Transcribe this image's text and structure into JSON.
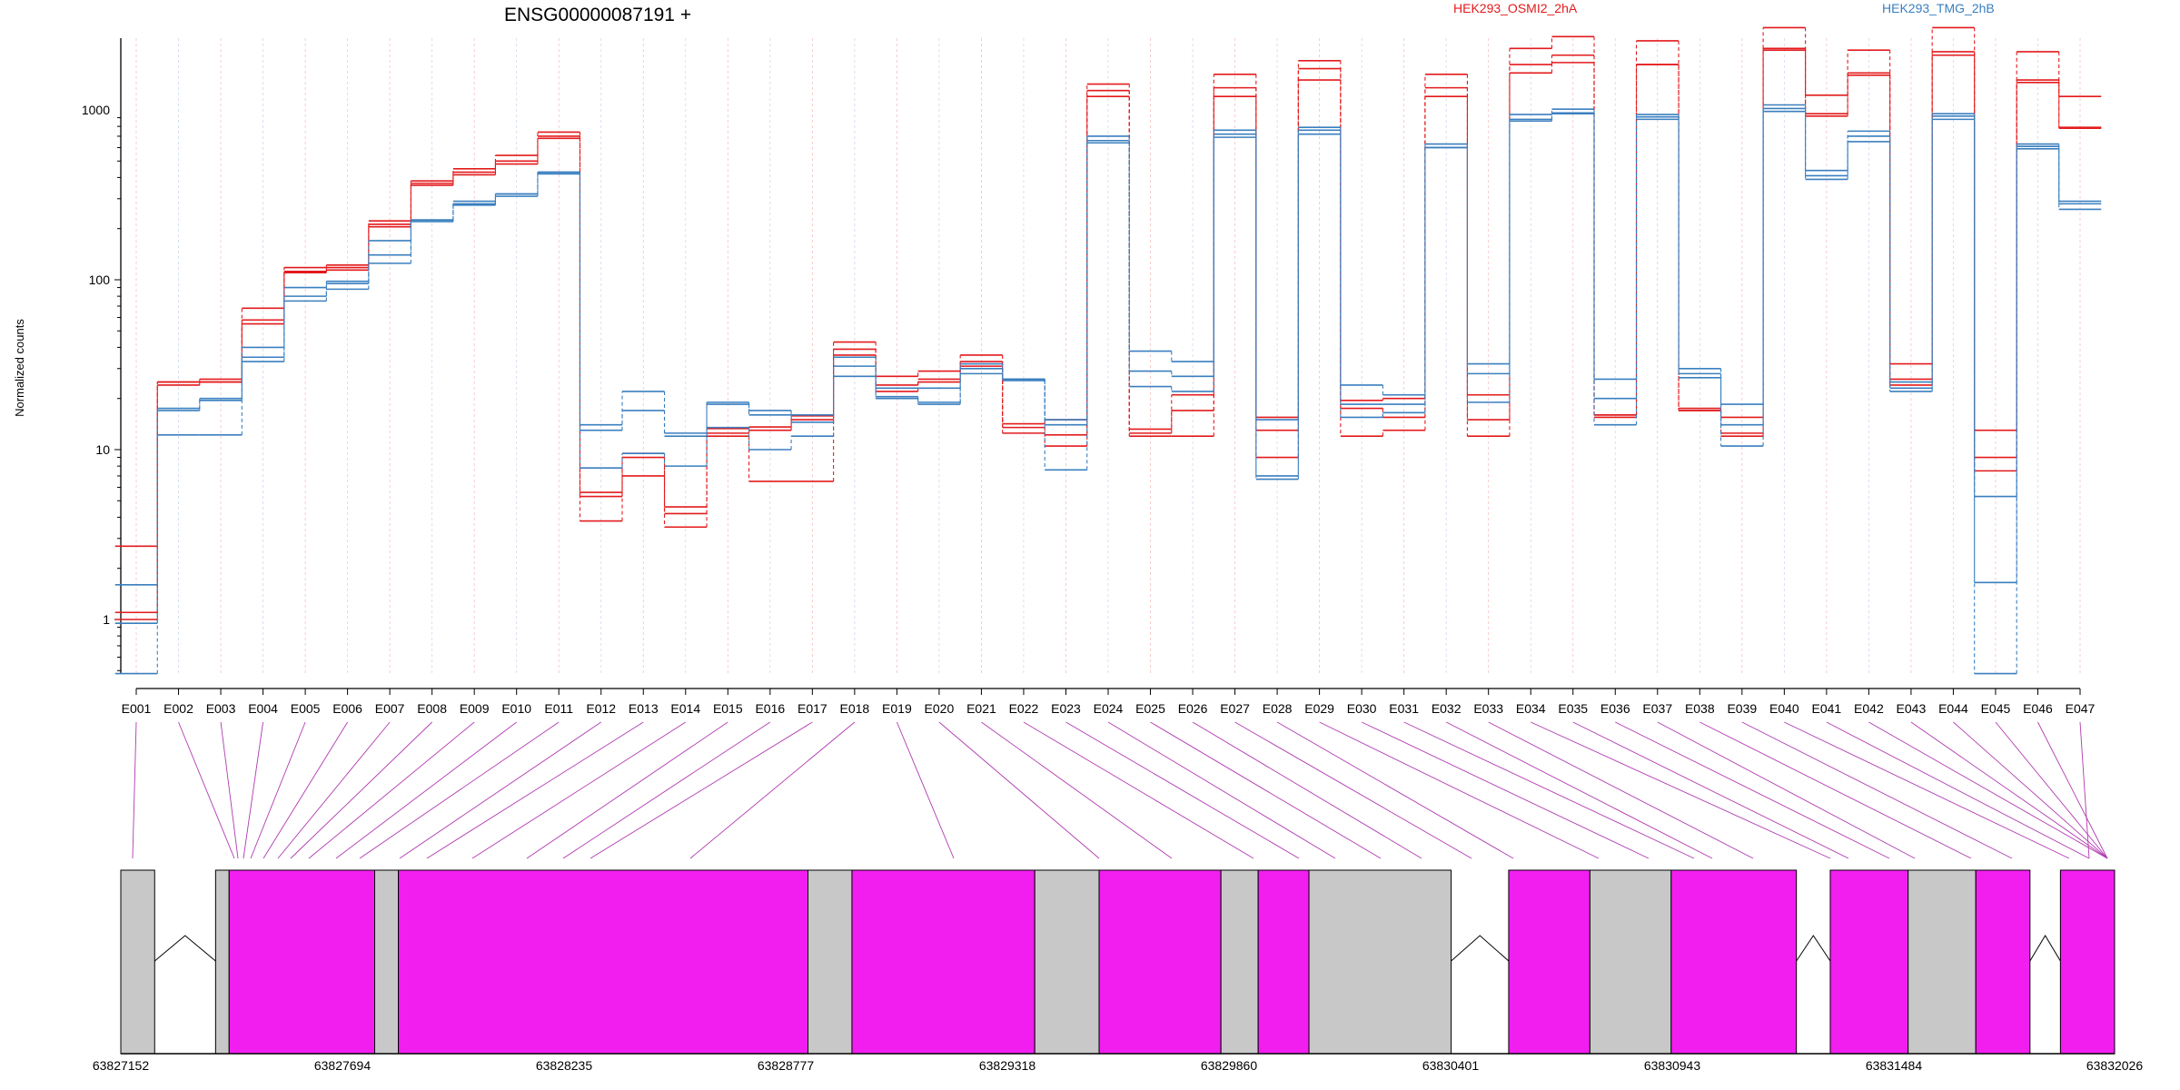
{
  "chart_data": {
    "type": "line",
    "title": "ENSG00000087191 +",
    "ylabel": "Normalized counts",
    "y_scale": "log",
    "ylim": [
      0.45,
      4500
    ],
    "y_ticks": [
      {
        "value": 1,
        "label": "1"
      },
      {
        "value": 10,
        "label": "10"
      },
      {
        "value": 100,
        "label": "100"
      },
      {
        "value": 1000,
        "label": "1000"
      }
    ],
    "legend": [
      "HEK293_OSMI2_2hA",
      "HEK293_TMG_2hB"
    ],
    "legend_position": "top",
    "categories": [
      "E001",
      "E002",
      "E003",
      "E004",
      "E005",
      "E006",
      "E007",
      "E008",
      "E009",
      "E010",
      "E011",
      "E012",
      "E013",
      "E014",
      "E015",
      "E016",
      "E017",
      "E018",
      "E019",
      "E020",
      "E021",
      "E022",
      "E023",
      "E024",
      "E025",
      "E026",
      "E027",
      "E028",
      "E029",
      "E030",
      "E031",
      "E032",
      "E033",
      "E034",
      "E035",
      "E036",
      "E037",
      "E038",
      "E039",
      "E040",
      "E041",
      "E042",
      "E043",
      "E044",
      "E045",
      "E046",
      "E047"
    ],
    "series": [
      {
        "name": "HEK293_OSMI2_2hA",
        "color": "#e31a1c",
        "values": [
          1.1,
          25,
          26,
          58,
          112,
          118,
          212,
          370,
          430,
          500,
          700,
          5.3,
          9,
          4.2,
          12.5,
          13,
          15,
          39,
          24,
          26,
          33,
          13.5,
          12.2,
          1300,
          12.5,
          17,
          1350,
          13,
          1750,
          17.5,
          15.5,
          1350,
          15,
          1850,
          2100,
          16,
          1850,
          17,
          12.5,
          2300,
          950,
          1650,
          26,
          2200,
          9,
          1500,
          790
        ]
      },
      {
        "name": "HEK293_OSMI2_2hA",
        "color": "#e31a1c",
        "values": [
          2.7,
          24,
          25,
          68,
          118,
          122,
          222,
          382,
          450,
          540,
          740,
          5.6,
          9.5,
          4.6,
          13.3,
          13.6,
          15.8,
          43,
          27,
          29,
          36,
          14.2,
          15,
          1420,
          13.2,
          21,
          1620,
          15.5,
          1950,
          19.5,
          20,
          1620,
          21,
          2300,
          2700,
          15.5,
          2550,
          17.5,
          15.5,
          3050,
          1220,
          2250,
          32,
          3050,
          13,
          2200,
          1200
        ]
      },
      {
        "name": "HEK293_OSMI2_2hA",
        "color": "#e31a1c",
        "values": [
          1.0,
          25,
          25,
          55,
          110,
          114,
          205,
          360,
          415,
          480,
          680,
          3.8,
          7,
          3.5,
          12,
          6.5,
          6.5,
          36,
          22,
          25,
          31,
          12.5,
          10.5,
          1200,
          12,
          12,
          1200,
          9,
          1500,
          12,
          13,
          1200,
          12,
          1650,
          1900,
          16,
          1850,
          17,
          12,
          2250,
          920,
          1600,
          24,
          2100,
          7.5,
          1450,
          780
        ]
      },
      {
        "name": "HEK293_TMG_2hB",
        "color": "#3a7fbf",
        "values": [
          0.95,
          17.5,
          20,
          35,
          90,
          95,
          140,
          225,
          290,
          320,
          430,
          14,
          22,
          12,
          19,
          17,
          16,
          35,
          23,
          23,
          32,
          26,
          15,
          700,
          38,
          33,
          760,
          15,
          790,
          24,
          21,
          630,
          32,
          940,
          1010,
          26,
          940,
          30,
          18.5,
          1070,
          440,
          750,
          25,
          950,
          5.3,
          630,
          290
        ]
      },
      {
        "name": "HEK293_TMG_2hB",
        "color": "#3a7fbf",
        "values": [
          1.6,
          17,
          19.5,
          40,
          80,
          98,
          170,
          220,
          275,
          310,
          420,
          7.8,
          9.5,
          8,
          13.5,
          10,
          12,
          27,
          20.5,
          18.5,
          28,
          26,
          14,
          660,
          29,
          27,
          720,
          7,
          760,
          18.5,
          18.5,
          600,
          28,
          880,
          950,
          20,
          910,
          26.5,
          14,
          1020,
          410,
          700,
          23,
          920,
          1.65,
          610,
          260
        ]
      },
      {
        "name": "HEK293_TMG_2hB",
        "color": "#3a7fbf",
        "values": [
          0.48,
          12.2,
          12.2,
          33,
          75,
          88,
          125,
          225,
          280,
          320,
          430,
          13,
          17,
          12.5,
          18.5,
          16,
          14.5,
          31,
          20,
          19,
          30,
          25.5,
          7.6,
          640,
          23.5,
          22,
          690,
          6.7,
          720,
          15.5,
          16.5,
          600,
          19,
          860,
          960,
          14,
          880,
          28,
          10.5,
          980,
          390,
          650,
          22,
          880,
          0.48,
          590,
          280
        ]
      }
    ],
    "gene_model": {
      "coordinate_labels": [
        "63827152",
        "63827694",
        "63828235",
        "63828777",
        "63829318",
        "63829860",
        "63830401",
        "63830943",
        "63831484",
        "63832026"
      ],
      "segments": [
        {
          "start": 0,
          "end": 0.01,
          "type": "gray"
        },
        {
          "start": 0.028,
          "end": 0.032,
          "type": "gray"
        },
        {
          "start": 0.032,
          "end": 0.075,
          "type": "magenta"
        },
        {
          "start": 0.075,
          "end": 0.082,
          "type": "gray"
        },
        {
          "start": 0.082,
          "end": 0.203,
          "type": "magenta"
        },
        {
          "start": 0.203,
          "end": 0.216,
          "type": "gray"
        },
        {
          "start": 0.216,
          "end": 0.27,
          "type": "magenta"
        },
        {
          "start": 0.27,
          "end": 0.289,
          "type": "gray"
        },
        {
          "start": 0.289,
          "end": 0.325,
          "type": "magenta"
        },
        {
          "start": 0.325,
          "end": 0.336,
          "type": "gray"
        },
        {
          "start": 0.336,
          "end": 0.351,
          "type": "magenta"
        },
        {
          "start": 0.351,
          "end": 0.393,
          "type": "gray"
        },
        {
          "start": 0.41,
          "end": 0.434,
          "type": "magenta"
        },
        {
          "start": 0.434,
          "end": 0.458,
          "type": "gray"
        },
        {
          "start": 0.458,
          "end": 0.495,
          "type": "magenta"
        },
        {
          "start": 0.505,
          "end": 0.528,
          "type": "magenta"
        },
        {
          "start": 0.528,
          "end": 0.548,
          "type": "gray"
        },
        {
          "start": 0.548,
          "end": 0.564,
          "type": "magenta"
        },
        {
          "start": 0.573,
          "end": 0.589,
          "type": "magenta"
        }
      ],
      "introns": [
        {
          "start": 0.01,
          "end": 0.028
        },
        {
          "start": 0.393,
          "end": 0.41
        },
        {
          "start": 0.495,
          "end": 0.505
        },
        {
          "start": 0.564,
          "end": 0.573
        }
      ]
    }
  }
}
